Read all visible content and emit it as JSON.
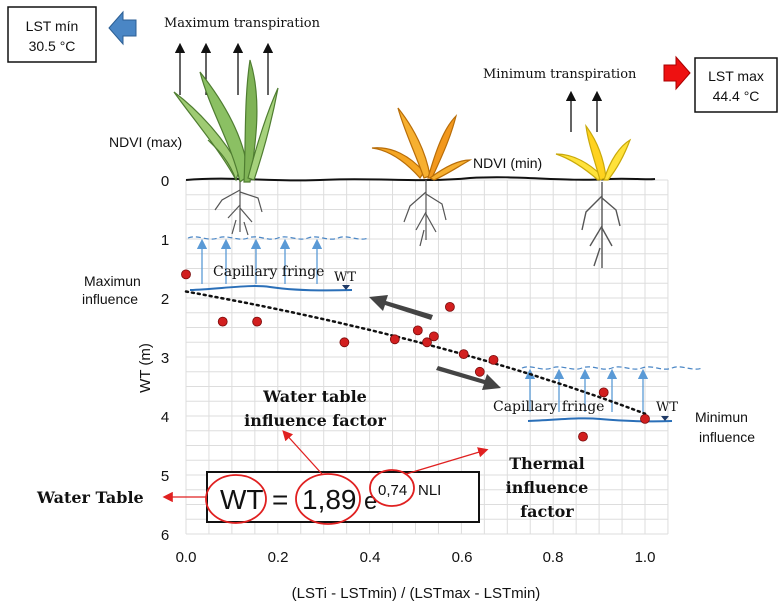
{
  "top_left_box": {
    "line1": "LST mín",
    "line2": "30.5 °C"
  },
  "top_right_box": {
    "line1": "LST max",
    "line2": "44.4 °C"
  },
  "labels": {
    "max_transpiration": "Maximum transpiration",
    "min_transpiration": "Minimum transpiration",
    "ndvi_max": "NDVI (max)",
    "ndvi_min": "NDVI (min)",
    "max_influence_1": "Maximun",
    "max_influence_2": "influence",
    "min_influence_1": "Minimun",
    "min_influence_2": "influence",
    "capillary_left": "Capillary fringe",
    "capillary_right": "Capillary fringe",
    "wt_left": "WT",
    "wt_right": "WT",
    "wt_factor_1": "Water table",
    "wt_factor_2": "influence factor",
    "thermal_1": "Thermal",
    "thermal_2": "influence",
    "thermal_3": "factor",
    "water_table": "Water Table"
  },
  "equation": {
    "lhs": "WT",
    "eq": "=",
    "coef": "1,89",
    "base": "e",
    "exp_coef": "0,74",
    "exp_var": "NLI"
  },
  "colors": {
    "left_arrow": "#4a86c5",
    "right_arrow": "#ee1111",
    "points": "#d21f1f",
    "capillary": "#2a6fb8",
    "annotation": "#e02020"
  },
  "chart_data": {
    "type": "scatter",
    "xlabel": "(LSTi - LSTmin) / (LSTmax - LSTmin)",
    "ylabel": "WT (m)",
    "xlim": [
      0,
      1.05
    ],
    "ylim": [
      0,
      6
    ],
    "y_inverted": true,
    "x_ticks": [
      "0.0",
      "0.2",
      "0.4",
      "0.6",
      "0.8",
      "1.0"
    ],
    "y_ticks": [
      "0",
      "1",
      "2",
      "3",
      "4",
      "5",
      "6"
    ],
    "grid": true,
    "points": [
      {
        "x": 0.0,
        "y": 1.6
      },
      {
        "x": 0.08,
        "y": 2.4
      },
      {
        "x": 0.155,
        "y": 2.4
      },
      {
        "x": 0.345,
        "y": 2.75
      },
      {
        "x": 0.455,
        "y": 2.7
      },
      {
        "x": 0.505,
        "y": 2.55
      },
      {
        "x": 0.525,
        "y": 2.75
      },
      {
        "x": 0.54,
        "y": 2.65
      },
      {
        "x": 0.575,
        "y": 2.15
      },
      {
        "x": 0.605,
        "y": 2.95
      },
      {
        "x": 0.64,
        "y": 3.25
      },
      {
        "x": 0.67,
        "y": 3.05
      },
      {
        "x": 0.865,
        "y": 4.35
      },
      {
        "x": 0.91,
        "y": 3.6
      },
      {
        "x": 1.0,
        "y": 4.05
      }
    ],
    "trend": {
      "model": "WT = 1.89 e^(0.74 NLI)",
      "x": [
        0,
        0.2,
        0.4,
        0.6,
        0.8,
        1.0
      ],
      "y": [
        1.89,
        2.18,
        2.54,
        2.93,
        3.41,
        3.96
      ]
    }
  }
}
